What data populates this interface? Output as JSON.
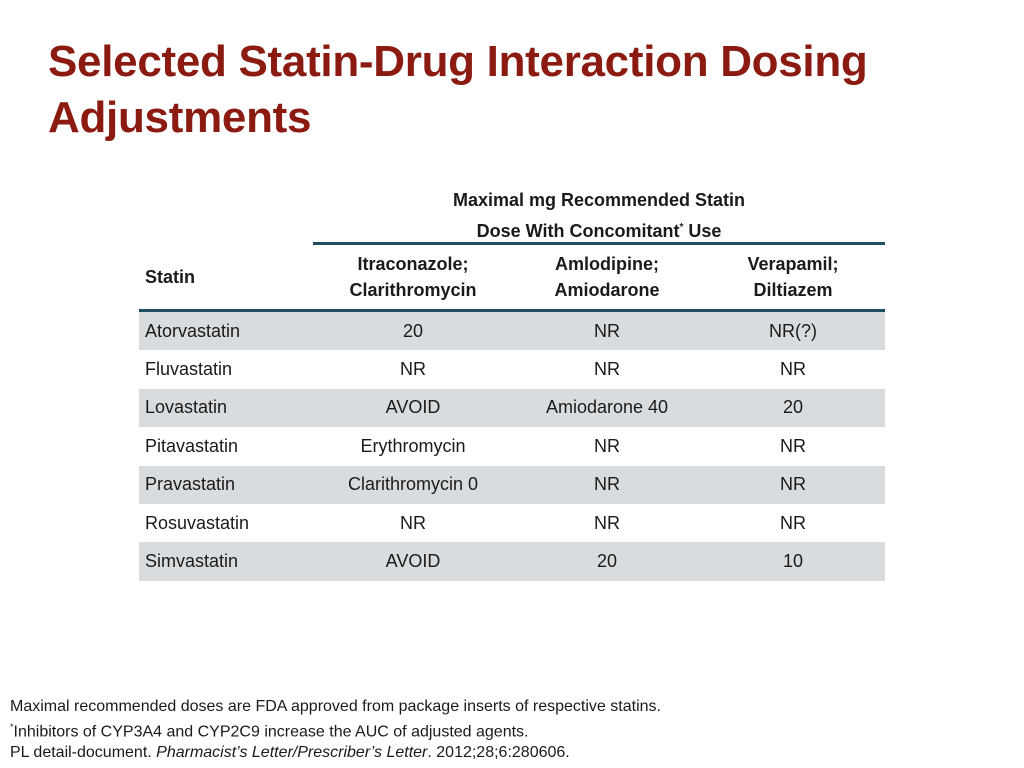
{
  "slide": {
    "title": "Selected Statin-Drug Interaction Dosing Adjustments"
  },
  "table": {
    "group_header": {
      "line1": "Maximal mg Recommended Statin",
      "line2_text": "Dose With Concomitant",
      "line2_mark": "*",
      "line2_end": " Use"
    },
    "columns": {
      "statin": "Statin",
      "c1_line1": "Itraconazole;",
      "c1_line2": "Clarithromycin",
      "c2_line1": "Amlodipine;",
      "c2_line2": "Amiodarone",
      "c3_line1": "Verapamil;",
      "c3_line2": "Diltiazem"
    },
    "rows": [
      {
        "statin": "Atorvastatin",
        "c1": "20",
        "c2": "NR",
        "c3": "NR(?)"
      },
      {
        "statin": "Fluvastatin",
        "c1": "NR",
        "c2": "NR",
        "c3": "NR"
      },
      {
        "statin": "Lovastatin",
        "c1": "AVOID",
        "c2": "Amiodarone 40",
        "c3": "20"
      },
      {
        "statin": "Pitavastatin",
        "c1": "Erythromycin",
        "c2": "NR",
        "c3": "NR"
      },
      {
        "statin": "Pravastatin",
        "c1": "Clarithromycin 0",
        "c2": "NR",
        "c3": "NR"
      },
      {
        "statin": "Rosuvastatin",
        "c1": "NR",
        "c2": "NR",
        "c3": "NR"
      },
      {
        "statin": "Simvastatin",
        "c1": "AVOID",
        "c2": "20",
        "c3": "10"
      }
    ]
  },
  "footnotes": {
    "line1": "Maximal recommended doses are FDA approved from package inserts of respective statins.",
    "line2_mark": "*",
    "line2_text": "Inhibitors of CYP3A4 and CYP2C9 increase the AUC of adjusted agents.",
    "line3_start": "PL detail-document. ",
    "line3_italic": "Pharmacist’s Letter/Prescriber’s Letter",
    "line3_end": ". 2012;28;6:280606."
  }
}
